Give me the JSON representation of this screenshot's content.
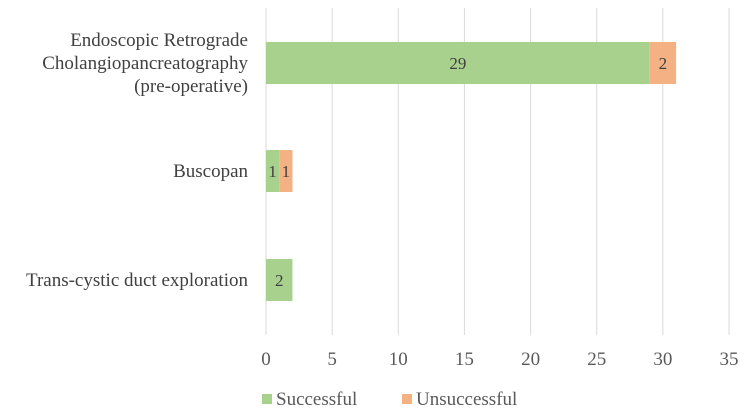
{
  "chart_data": {
    "type": "bar",
    "orientation": "horizontal",
    "stacked": true,
    "title": "",
    "xlabel": "",
    "ylabel": "",
    "xlim": [
      0,
      35
    ],
    "x_ticks": [
      0,
      5,
      10,
      15,
      20,
      25,
      30,
      35
    ],
    "grid": true,
    "legend_position": "bottom",
    "categories": [
      "Endoscopic Retrograde Cholangiopancreatography (pre-operative)",
      "Buscopan",
      "Trans-cystic duct exploration"
    ],
    "category_lines": [
      [
        "Endoscopic Retrograde",
        "Cholangiopancreatography",
        "(pre-operative)"
      ],
      [
        "Buscopan"
      ],
      [
        "Trans-cystic duct exploration"
      ]
    ],
    "series": [
      {
        "name": "Successful",
        "color": "#a9d18e",
        "values": [
          29,
          1,
          2
        ]
      },
      {
        "name": "Unsuccessful",
        "color": "#f4b183",
        "values": [
          2,
          1,
          0
        ]
      }
    ]
  }
}
